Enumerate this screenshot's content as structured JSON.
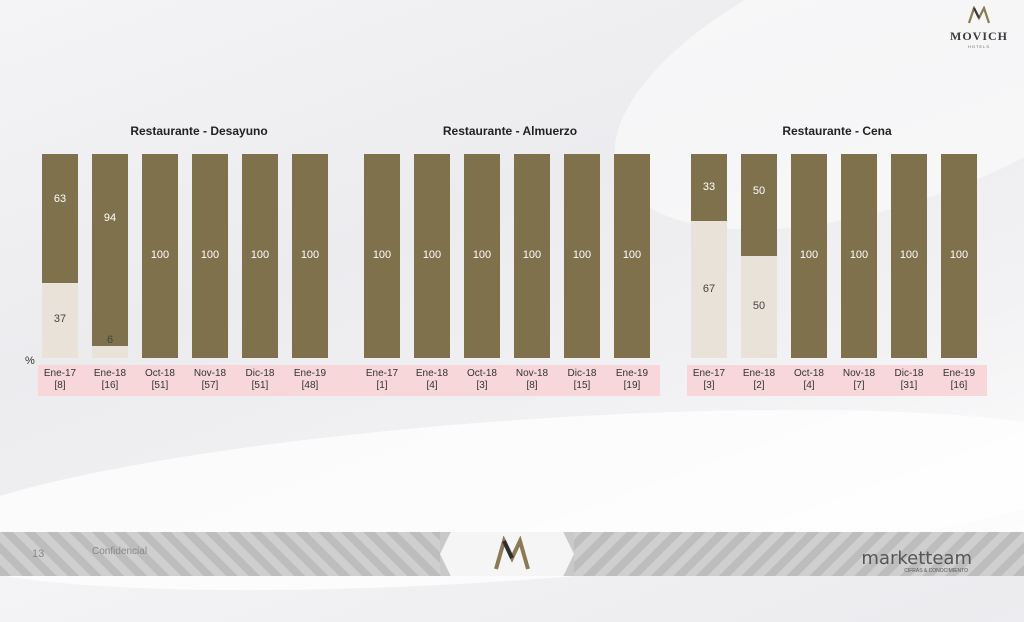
{
  "header": {
    "logo_name": "MOVICH",
    "logo_sub": "HOTELS"
  },
  "axis_unit": "%",
  "chart_data": [
    {
      "type": "bar",
      "title": "Restaurante - Desayuno",
      "categories": [
        "Ene-17",
        "Ene-18",
        "Oct-18",
        "Nov-18",
        "Dic-18",
        "Ene-19"
      ],
      "bases": [
        "[8]",
        "[16]",
        "[51]",
        "[57]",
        "[51]",
        "[48]"
      ],
      "series": [
        {
          "values": [
            63,
            94,
            100,
            100,
            100,
            100
          ]
        },
        {
          "values": [
            37,
            6,
            0,
            0,
            0,
            0
          ]
        }
      ]
    },
    {
      "type": "bar",
      "title": "Restaurante - Almuerzo",
      "categories": [
        "Ene-17",
        "Ene-18",
        "Oct-18",
        "Nov-18",
        "Dic-18",
        "Ene-19"
      ],
      "bases": [
        "[1]",
        "[4]",
        "[3]",
        "[8]",
        "[15]",
        "[19]"
      ],
      "series": [
        {
          "values": [
            100,
            100,
            100,
            100,
            100,
            100
          ]
        },
        {
          "values": [
            0,
            0,
            0,
            0,
            0,
            0
          ]
        }
      ]
    },
    {
      "type": "bar",
      "title": "Restaurante - Cena",
      "categories": [
        "Ene-17",
        "Ene-18",
        "Oct-18",
        "Nov-18",
        "Dic-18",
        "Ene-19"
      ],
      "bases": [
        "[3]",
        "[2]",
        "[4]",
        "[7]",
        "[31]",
        "[16]"
      ],
      "series": [
        {
          "values": [
            33,
            50,
            100,
            100,
            100,
            100
          ]
        },
        {
          "values": [
            67,
            50,
            0,
            0,
            0,
            0
          ]
        }
      ]
    }
  ],
  "colors": {
    "top": "#80714d",
    "bottom": "#e8e2d8",
    "axis_strip": "#f7d7d9"
  },
  "footer": {
    "page_number": "13",
    "confidential": "Confidencial",
    "brand": "marketteam",
    "brand_sub": "CIFRAS & CONOCIMIENTO"
  }
}
